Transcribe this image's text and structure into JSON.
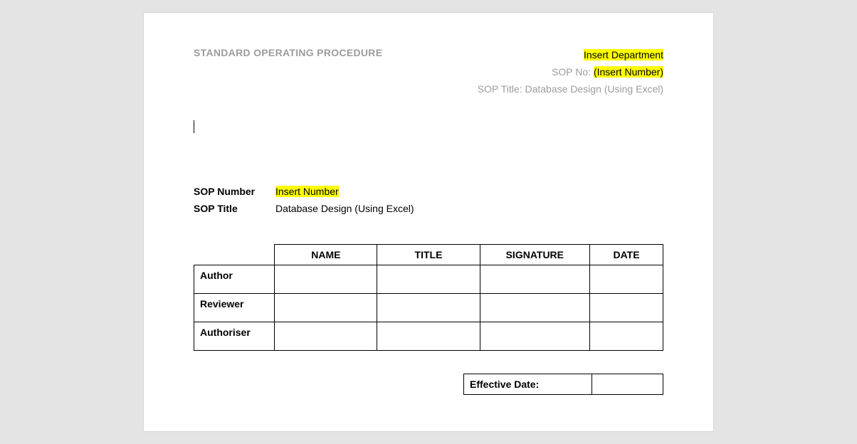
{
  "header": {
    "left_title": "STANDARD OPERATING PROCEDURE",
    "department_placeholder": "Insert Department",
    "sop_no_label": "SOP No: ",
    "sop_no_placeholder": "(Insert Number)",
    "sop_title_label": "SOP Title: ",
    "sop_title_value": "Database Design (Using Excel)"
  },
  "info": {
    "sop_number_label": "SOP Number",
    "sop_number_value": "Insert Number",
    "sop_title_label": "SOP Title",
    "sop_title_value": "Database Design (Using Excel)"
  },
  "approval_table": {
    "columns": [
      "NAME",
      "TITLE",
      "SIGNATURE",
      "DATE"
    ],
    "rows": [
      {
        "role": "Author",
        "name": "",
        "title": "",
        "signature": "",
        "date": ""
      },
      {
        "role": "Reviewer",
        "name": "",
        "title": "",
        "signature": "",
        "date": ""
      },
      {
        "role": "Authoriser",
        "name": "",
        "title": "",
        "signature": "",
        "date": ""
      }
    ]
  },
  "effective": {
    "label": "Effective Date:",
    "value": ""
  },
  "colors": {
    "page_bg": "#ffffff",
    "outer_bg": "#e4e4e4",
    "muted_text": "#9c9c9c",
    "text": "#000000",
    "highlight_bg": "#ffff00",
    "border": "#000000"
  }
}
